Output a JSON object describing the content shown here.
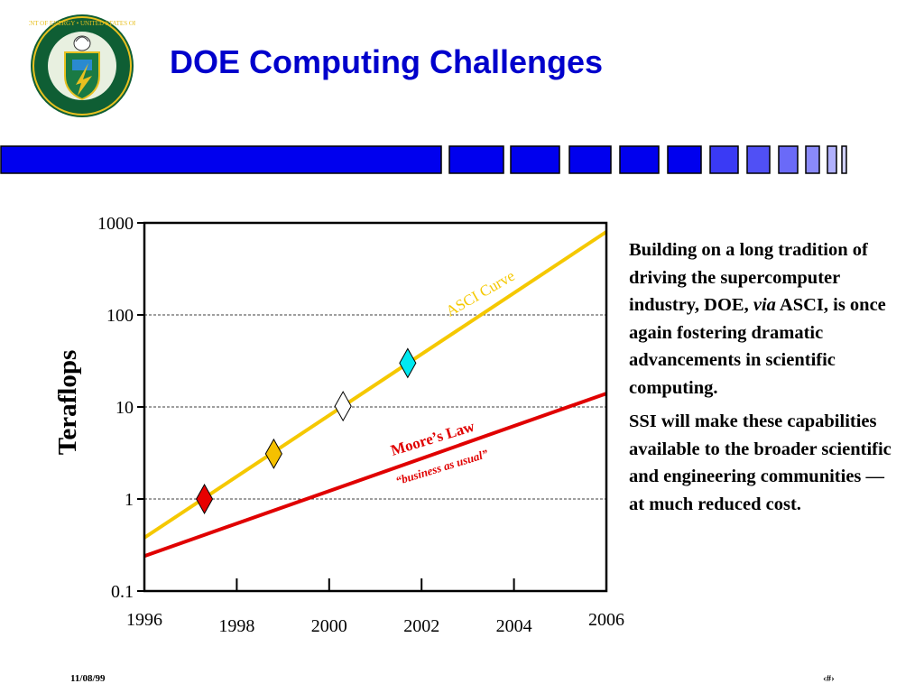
{
  "slide": {
    "title": "DOE Computing Challenges",
    "footer_date": "11/08/99",
    "footer_page": "‹#›",
    "seal": {
      "ring_text": "DEPARTMENT OF ENERGY • UNITED STATES OF AMERICA",
      "colors": {
        "ring": "#0a6b3a",
        "shield": "#1a7a44",
        "gold": "#e8c020",
        "outer": "#0f5e34"
      }
    },
    "accent_bar_color": "#0000ee"
  },
  "side_text": {
    "p1_before": "Building on a long tradition of driving the supercomputer industry, DOE, ",
    "p1_italic": "via",
    "p1_after": " ASCI, is once again fostering dramatic advancements in scientific computing.",
    "p2": "SSI will make these capabilities available to the broader scientific and engineering communities —at much reduced cost."
  },
  "chart_data": {
    "type": "line",
    "title": "",
    "xlabel": "",
    "ylabel": "Teraflops",
    "y_scale": "log",
    "xlim": [
      1996,
      2006
    ],
    "ylim": [
      0.1,
      1000
    ],
    "x_ticks": [
      1996,
      1998,
      2000,
      2002,
      2004,
      2006
    ],
    "x_tick_labels": [
      "1996",
      "1998",
      "2000",
      "2002",
      "2004",
      "2006"
    ],
    "y_ticks": [
      0.1,
      1,
      10,
      100,
      1000
    ],
    "y_tick_labels": [
      "0.1",
      "1",
      "10",
      "100",
      "1000"
    ],
    "grid": "horizontal dashed",
    "series": [
      {
        "name": "ASCI Curve",
        "color": "#f5c800",
        "x": [
          1996,
          2006
        ],
        "y": [
          0.38,
          800
        ]
      },
      {
        "name": "Moore’s Law",
        "sublabel": "“business as usual”",
        "color": "#e00000",
        "x": [
          1996,
          2006
        ],
        "y": [
          0.24,
          14
        ]
      }
    ],
    "markers": [
      {
        "x": 1997.3,
        "y": 1.0,
        "color": "#e80000"
      },
      {
        "x": 1998.8,
        "y": 3.1,
        "color": "#f5c000"
      },
      {
        "x": 2000.3,
        "y": 10.2,
        "color": "#ffffff"
      },
      {
        "x": 2001.7,
        "y": 30,
        "color": "#00e8f0"
      }
    ]
  }
}
